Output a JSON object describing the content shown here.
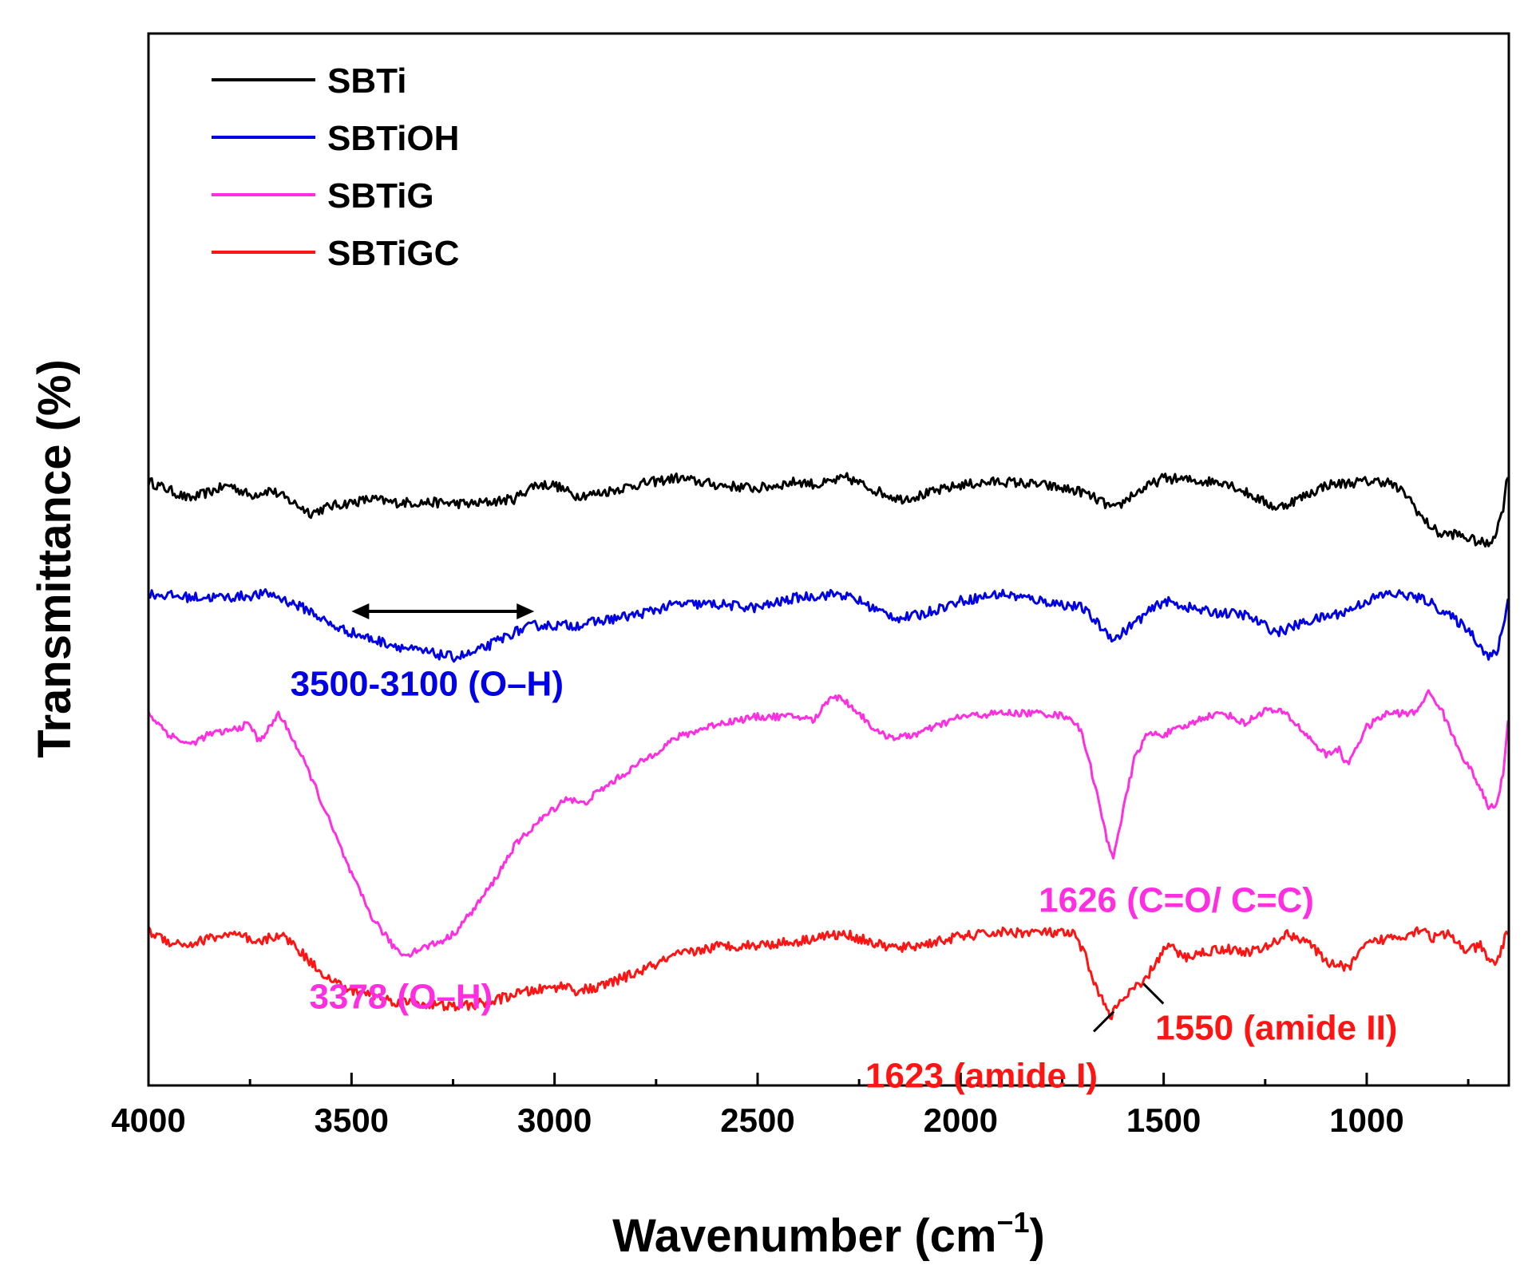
{
  "chart_data": {
    "type": "line",
    "title": "",
    "xlabel": "Wavenumber (cm",
    "xlabel_sup": "−1",
    "xlabel_close": ")",
    "ylabel": "Transmittance (%)",
    "xlim": [
      4000,
      650
    ],
    "xticks": [
      4000,
      3500,
      3000,
      2500,
      2000,
      1500,
      1000
    ],
    "legend": "top-left",
    "series": [
      {
        "name": "SBTi",
        "color": "#000000",
        "offset": 8.6,
        "noise": 0.07,
        "points": [
          [
            4000,
            0.0
          ],
          [
            3950,
            -0.12
          ],
          [
            3900,
            -0.25
          ],
          [
            3850,
            -0.15
          ],
          [
            3800,
            -0.05
          ],
          [
            3750,
            -0.2
          ],
          [
            3700,
            -0.12
          ],
          [
            3650,
            -0.28
          ],
          [
            3600,
            -0.45
          ],
          [
            3550,
            -0.35
          ],
          [
            3500,
            -0.3
          ],
          [
            3450,
            -0.25
          ],
          [
            3400,
            -0.3
          ],
          [
            3300,
            -0.3
          ],
          [
            3200,
            -0.32
          ],
          [
            3100,
            -0.25
          ],
          [
            3050,
            -0.05
          ],
          [
            3000,
            -0.05
          ],
          [
            2950,
            -0.2
          ],
          [
            2900,
            -0.18
          ],
          [
            2800,
            -0.05
          ],
          [
            2700,
            0.05
          ],
          [
            2600,
            -0.05
          ],
          [
            2500,
            -0.1
          ],
          [
            2400,
            0.0
          ],
          [
            2350,
            -0.05
          ],
          [
            2280,
            0.05
          ],
          [
            2200,
            -0.15
          ],
          [
            2150,
            -0.25
          ],
          [
            2100,
            -0.2
          ],
          [
            2000,
            -0.05
          ],
          [
            1900,
            0.0
          ],
          [
            1800,
            -0.05
          ],
          [
            1700,
            -0.15
          ],
          [
            1650,
            -0.3
          ],
          [
            1620,
            -0.4
          ],
          [
            1580,
            -0.2
          ],
          [
            1500,
            0.05
          ],
          [
            1400,
            0.0
          ],
          [
            1350,
            0.0
          ],
          [
            1300,
            -0.15
          ],
          [
            1250,
            -0.3
          ],
          [
            1220,
            -0.38
          ],
          [
            1150,
            -0.2
          ],
          [
            1100,
            -0.05
          ],
          [
            1000,
            0.0
          ],
          [
            950,
            0.0
          ],
          [
            900,
            -0.2
          ],
          [
            860,
            -0.55
          ],
          [
            820,
            -0.75
          ],
          [
            780,
            -0.75
          ],
          [
            730,
            -0.85
          ],
          [
            700,
            -0.9
          ],
          [
            680,
            -0.7
          ],
          [
            665,
            -0.4
          ],
          [
            650,
            0.2
          ]
        ]
      },
      {
        "name": "SBTiOH",
        "color": "#0000e6",
        "offset": 7.0,
        "noise": 0.07,
        "points": [
          [
            4000,
            0.0
          ],
          [
            3900,
            -0.05
          ],
          [
            3800,
            -0.05
          ],
          [
            3700,
            0.0
          ],
          [
            3600,
            -0.25
          ],
          [
            3550,
            -0.45
          ],
          [
            3500,
            -0.55
          ],
          [
            3450,
            -0.65
          ],
          [
            3400,
            -0.72
          ],
          [
            3350,
            -0.8
          ],
          [
            3300,
            -0.85
          ],
          [
            3250,
            -0.9
          ],
          [
            3200,
            -0.85
          ],
          [
            3150,
            -0.7
          ],
          [
            3100,
            -0.55
          ],
          [
            3050,
            -0.45
          ],
          [
            3000,
            -0.45
          ],
          [
            2950,
            -0.45
          ],
          [
            2900,
            -0.4
          ],
          [
            2800,
            -0.3
          ],
          [
            2700,
            -0.15
          ],
          [
            2600,
            -0.15
          ],
          [
            2500,
            -0.2
          ],
          [
            2400,
            -0.05
          ],
          [
            2300,
            0.0
          ],
          [
            2250,
            -0.1
          ],
          [
            2200,
            -0.25
          ],
          [
            2150,
            -0.35
          ],
          [
            2100,
            -0.3
          ],
          [
            2000,
            -0.1
          ],
          [
            1900,
            0.0
          ],
          [
            1800,
            -0.1
          ],
          [
            1700,
            -0.2
          ],
          [
            1650,
            -0.5
          ],
          [
            1620,
            -0.65
          ],
          [
            1580,
            -0.45
          ],
          [
            1500,
            -0.1
          ],
          [
            1400,
            -0.25
          ],
          [
            1300,
            -0.3
          ],
          [
            1220,
            -0.55
          ],
          [
            1150,
            -0.4
          ],
          [
            1050,
            -0.25
          ],
          [
            1000,
            -0.1
          ],
          [
            950,
            0.0
          ],
          [
            900,
            -0.02
          ],
          [
            850,
            -0.1
          ],
          [
            800,
            -0.3
          ],
          [
            750,
            -0.5
          ],
          [
            700,
            -0.9
          ],
          [
            680,
            -0.85
          ],
          [
            665,
            -0.5
          ],
          [
            650,
            0.0
          ]
        ]
      },
      {
        "name": "SBTiG",
        "color": "#ff2ee0",
        "offset": 5.3,
        "noise": 0.05,
        "points": [
          [
            4000,
            0.0
          ],
          [
            3950,
            -0.3
          ],
          [
            3900,
            -0.45
          ],
          [
            3850,
            -0.3
          ],
          [
            3800,
            -0.25
          ],
          [
            3750,
            -0.15
          ],
          [
            3730,
            -0.4
          ],
          [
            3700,
            -0.2
          ],
          [
            3680,
            0.0
          ],
          [
            3650,
            -0.3
          ],
          [
            3600,
            -0.9
          ],
          [
            3550,
            -1.6
          ],
          [
            3500,
            -2.3
          ],
          [
            3450,
            -2.9
          ],
          [
            3400,
            -3.3
          ],
          [
            3370,
            -3.45
          ],
          [
            3330,
            -3.35
          ],
          [
            3280,
            -3.25
          ],
          [
            3250,
            -3.15
          ],
          [
            3200,
            -2.8
          ],
          [
            3150,
            -2.4
          ],
          [
            3100,
            -1.9
          ],
          [
            3050,
            -1.6
          ],
          [
            3000,
            -1.35
          ],
          [
            2970,
            -1.2
          ],
          [
            2930,
            -1.3
          ],
          [
            2900,
            -1.15
          ],
          [
            2800,
            -0.75
          ],
          [
            2700,
            -0.35
          ],
          [
            2600,
            -0.15
          ],
          [
            2500,
            -0.05
          ],
          [
            2400,
            -0.05
          ],
          [
            2360,
            -0.1
          ],
          [
            2320,
            0.25
          ],
          [
            2290,
            0.2
          ],
          [
            2250,
            0.0
          ],
          [
            2200,
            -0.3
          ],
          [
            2150,
            -0.35
          ],
          [
            2100,
            -0.28
          ],
          [
            2000,
            -0.05
          ],
          [
            1900,
            0.0
          ],
          [
            1800,
            0.0
          ],
          [
            1730,
            -0.05
          ],
          [
            1700,
            -0.3
          ],
          [
            1670,
            -1.0
          ],
          [
            1640,
            -1.8
          ],
          [
            1625,
            -2.05
          ],
          [
            1600,
            -1.4
          ],
          [
            1570,
            -0.6
          ],
          [
            1540,
            -0.3
          ],
          [
            1500,
            -0.3
          ],
          [
            1450,
            -0.2
          ],
          [
            1400,
            -0.05
          ],
          [
            1350,
            0.0
          ],
          [
            1300,
            -0.15
          ],
          [
            1250,
            0.05
          ],
          [
            1200,
            0.0
          ],
          [
            1150,
            -0.3
          ],
          [
            1100,
            -0.6
          ],
          [
            1070,
            -0.5
          ],
          [
            1050,
            -0.75
          ],
          [
            1000,
            -0.2
          ],
          [
            950,
            0.0
          ],
          [
            880,
            0.0
          ],
          [
            850,
            0.3
          ],
          [
            820,
            0.1
          ],
          [
            790,
            -0.3
          ],
          [
            760,
            -0.65
          ],
          [
            730,
            -0.95
          ],
          [
            700,
            -1.35
          ],
          [
            680,
            -1.3
          ],
          [
            665,
            -0.9
          ],
          [
            650,
            0.0
          ]
        ]
      },
      {
        "name": "SBTiGC",
        "color": "#ff1414",
        "offset": 2.2,
        "noise": 0.07,
        "points": [
          [
            4000,
            0.0
          ],
          [
            3950,
            -0.15
          ],
          [
            3900,
            -0.2
          ],
          [
            3850,
            -0.1
          ],
          [
            3800,
            -0.05
          ],
          [
            3760,
            -0.1
          ],
          [
            3740,
            -0.2
          ],
          [
            3700,
            -0.1
          ],
          [
            3680,
            -0.05
          ],
          [
            3650,
            -0.15
          ],
          [
            3600,
            -0.45
          ],
          [
            3550,
            -0.7
          ],
          [
            3500,
            -0.85
          ],
          [
            3450,
            -0.9
          ],
          [
            3400,
            -1.0
          ],
          [
            3350,
            -1.02
          ],
          [
            3300,
            -1.05
          ],
          [
            3250,
            -1.08
          ],
          [
            3200,
            -1.05
          ],
          [
            3150,
            -1.0
          ],
          [
            3100,
            -0.9
          ],
          [
            3050,
            -0.85
          ],
          [
            3000,
            -0.8
          ],
          [
            2970,
            -0.78
          ],
          [
            2950,
            -0.85
          ],
          [
            2900,
            -0.82
          ],
          [
            2800,
            -0.6
          ],
          [
            2700,
            -0.35
          ],
          [
            2600,
            -0.22
          ],
          [
            2500,
            -0.2
          ],
          [
            2400,
            -0.15
          ],
          [
            2350,
            -0.08
          ],
          [
            2280,
            -0.05
          ],
          [
            2200,
            -0.2
          ],
          [
            2150,
            -0.25
          ],
          [
            2100,
            -0.2
          ],
          [
            2000,
            -0.08
          ],
          [
            1900,
            -0.02
          ],
          [
            1800,
            -0.02
          ],
          [
            1720,
            -0.05
          ],
          [
            1690,
            -0.4
          ],
          [
            1660,
            -0.9
          ],
          [
            1630,
            -1.2
          ],
          [
            1610,
            -1.05
          ],
          [
            1580,
            -0.85
          ],
          [
            1550,
            -0.75
          ],
          [
            1520,
            -0.45
          ],
          [
            1490,
            -0.2
          ],
          [
            1450,
            -0.38
          ],
          [
            1400,
            -0.3
          ],
          [
            1350,
            -0.25
          ],
          [
            1300,
            -0.3
          ],
          [
            1250,
            -0.25
          ],
          [
            1200,
            -0.05
          ],
          [
            1150,
            -0.12
          ],
          [
            1100,
            -0.45
          ],
          [
            1080,
            -0.45
          ],
          [
            1050,
            -0.55
          ],
          [
            1000,
            -0.2
          ],
          [
            950,
            -0.1
          ],
          [
            900,
            -0.05
          ],
          [
            860,
            0.05
          ],
          [
            840,
            -0.1
          ],
          [
            800,
            -0.05
          ],
          [
            750,
            -0.3
          ],
          [
            720,
            -0.2
          ],
          [
            700,
            -0.45
          ],
          [
            680,
            -0.45
          ],
          [
            665,
            -0.2
          ],
          [
            650,
            0.05
          ]
        ]
      }
    ],
    "annotations": [
      {
        "id": "oh-range",
        "text": "3500-3100 (O–H)",
        "color": "#0000e6",
        "series": "SBTiOH",
        "arrow_from": 3500,
        "arrow_to": 3050,
        "x": 3300
      },
      {
        "id": "oh-peak",
        "text": "3378 (O–H)",
        "color": "#ff2ee0",
        "series": "SBTiG",
        "x": 3378
      },
      {
        "id": "co-cc",
        "text": "1626 (C=O/ C=C)",
        "color": "#ff2ee0",
        "series": "SBTiG",
        "x": 1626
      },
      {
        "id": "amide-1",
        "text": "1623 (amide I)",
        "color": "#ff1414",
        "series": "SBTiGC",
        "x": 1623
      },
      {
        "id": "amide-2",
        "text": "1550 (amide II)",
        "color": "#ff1414",
        "series": "SBTiGC",
        "x": 1550
      }
    ]
  }
}
